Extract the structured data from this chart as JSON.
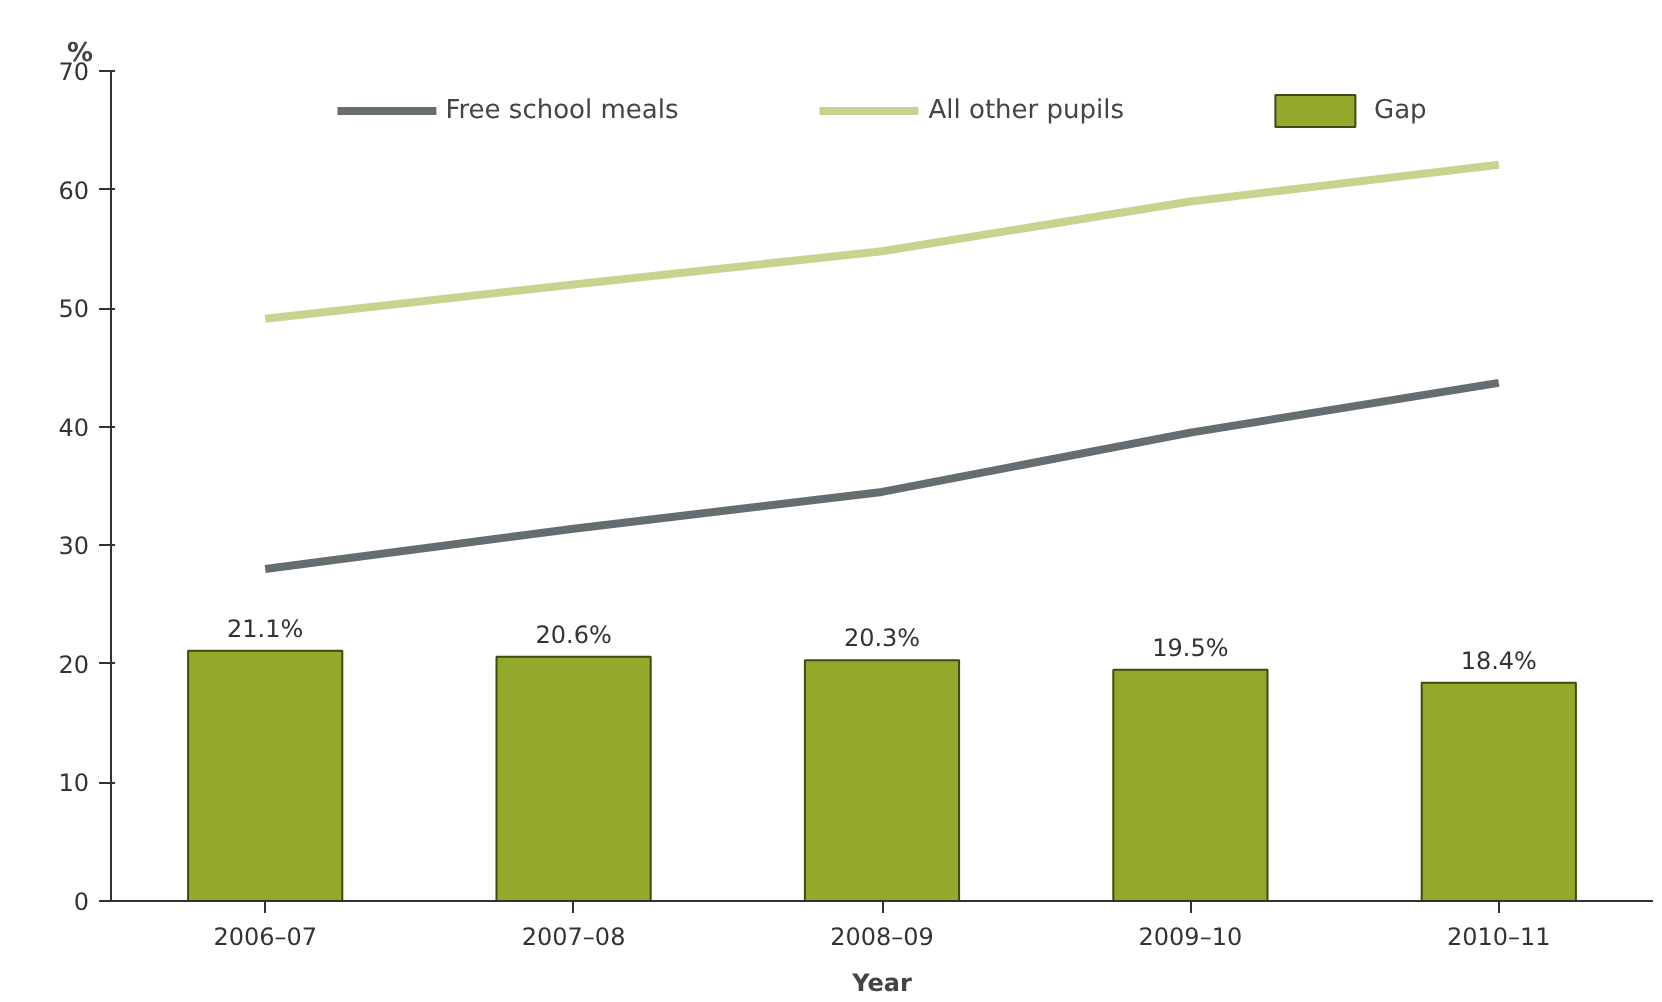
{
  "chart_data": {
    "type": "bar",
    "xlabel": "Year",
    "ylabel": "%",
    "categories": [
      "2006–07",
      "2007–08",
      "2008–09",
      "2009–10",
      "2010–11"
    ],
    "series": [
      {
        "name": "Free school meals",
        "type": "line",
        "color": "#666d70",
        "values": [
          28.0,
          31.4,
          34.5,
          39.5,
          43.7
        ]
      },
      {
        "name": "All other pupils",
        "type": "line",
        "color": "#c5d48f",
        "values": [
          49.1,
          52.0,
          54.8,
          59.0,
          62.1
        ]
      },
      {
        "name": "Gap",
        "color": "#93a92b",
        "values": [
          21.1,
          20.6,
          20.3,
          19.5,
          18.4
        ],
        "value_labels": [
          "21.1%",
          "20.6%",
          "20.3%",
          "19.5%",
          "18.4%"
        ]
      }
    ],
    "ylim": [
      0,
      70
    ],
    "yticks": [
      0,
      10,
      20,
      30,
      40,
      50,
      60,
      70
    ],
    "grid": false,
    "legend": "top"
  }
}
